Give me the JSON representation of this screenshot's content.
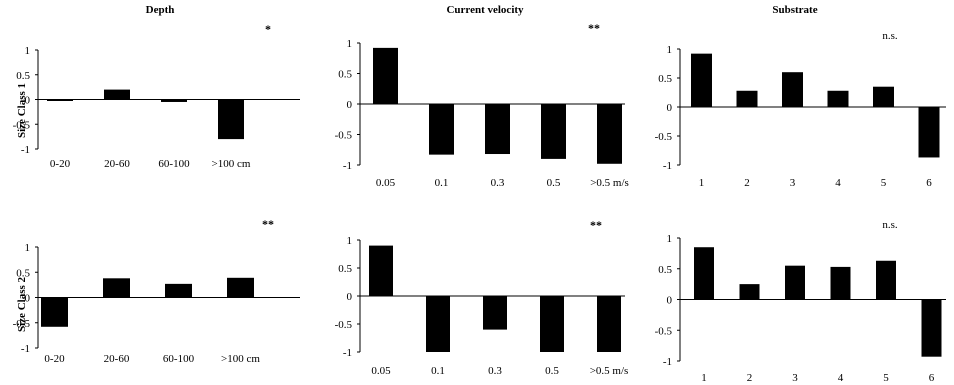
{
  "titles": {
    "depth": "Depth",
    "velocity": "Current velocity",
    "substrate": "Substrate"
  },
  "rows": {
    "size1": "Size Class 1",
    "size2": "Size Class 2"
  },
  "chart_data": [
    {
      "id": "p1",
      "type": "bar",
      "title": "Depth",
      "ylabel": "Size Class 1",
      "ylim": [
        -1,
        1
      ],
      "yticks": [
        "1",
        "0.5",
        "0",
        "-0.5",
        "-1"
      ],
      "categories": [
        "0-20",
        "20-60",
        "60-100",
        ">100 cm"
      ],
      "values": [
        -0.03,
        0.2,
        -0.05,
        -0.8
      ],
      "annotation": "*",
      "grid": false
    },
    {
      "id": "p2",
      "type": "bar",
      "title": "Current velocity",
      "ylim": [
        -1,
        1
      ],
      "yticks": [
        "1",
        "0.5",
        "0",
        "-0.5",
        "-1"
      ],
      "categories": [
        "0.05",
        "0.1",
        "0.3",
        "0.5",
        ">0.5 m/s"
      ],
      "values": [
        0.92,
        -0.83,
        -0.82,
        -0.9,
        -0.98
      ],
      "annotation": "**",
      "grid": false
    },
    {
      "id": "p3",
      "type": "bar",
      "title": "Substrate",
      "ylim": [
        -1,
        1
      ],
      "yticks": [
        "1",
        "0.5",
        "0",
        "-0.5",
        "-1"
      ],
      "categories": [
        "1",
        "2",
        "3",
        "4",
        "5",
        "6"
      ],
      "values": [
        0.92,
        0.28,
        0.6,
        0.28,
        0.35,
        -0.87
      ],
      "annotation": "n.s.",
      "grid": false
    },
    {
      "id": "p4",
      "type": "bar",
      "ylabel": "Size Class 2",
      "ylim": [
        -1,
        1
      ],
      "yticks": [
        "1",
        "0.5",
        "0",
        "-0.5",
        "-1"
      ],
      "categories": [
        "0-20",
        "20-60",
        "60-100",
        ">100 cm"
      ],
      "values": [
        -0.58,
        0.38,
        0.27,
        0.39
      ],
      "annotation": "**",
      "grid": false
    },
    {
      "id": "p5",
      "type": "bar",
      "ylim": [
        -1,
        1
      ],
      "yticks": [
        "1",
        "0.5",
        "0",
        "-0.5",
        "-1"
      ],
      "categories": [
        "0.05",
        "0.1",
        "0.3",
        "0.5",
        ">0.5 m/s"
      ],
      "values": [
        0.9,
        -1.0,
        -0.6,
        -1.0,
        -1.0
      ],
      "annotation": "**",
      "grid": false
    },
    {
      "id": "p6",
      "type": "bar",
      "ylim": [
        -1,
        1
      ],
      "yticks": [
        "1",
        "0.5",
        "0",
        "-0.5",
        "-1"
      ],
      "categories": [
        "1",
        "2",
        "3",
        "4",
        "5",
        "6"
      ],
      "values": [
        0.85,
        0.25,
        0.55,
        0.53,
        0.63,
        -0.93
      ],
      "annotation": "n.s.",
      "grid": false
    }
  ]
}
